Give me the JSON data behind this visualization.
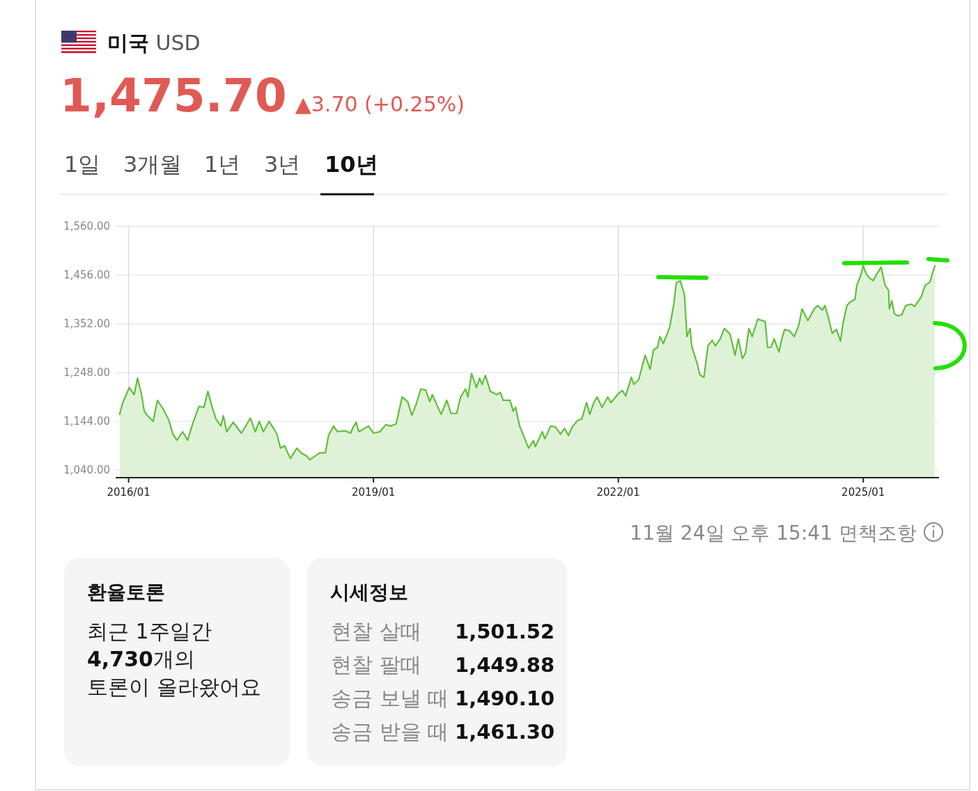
{
  "chart_data": [
    {
      "type": "area",
      "title": "**미국** USD",
      "subtitle": "**1,475.70**▲3.70 (+0.25%)",
      "annotations": [
        "1일",
        "3개월",
        "1년",
        "3년",
        "**10년**",
        "11월 24일 오후 15:41",
        "면책조항"
      ],
      "color": "#5fbf3a",
      "grid": true,
      "xlim": [
        "2015-11-04",
        "2025-12-06"
      ],
      "ylim": [
        1024,
        1560
      ],
      "xticks": [
        {
          "value": "2016-01-01",
          "label": "2016/01"
        },
        {
          "value": "2019-01-01",
          "label": "2019/01"
        },
        {
          "value": "2022-01-01",
          "label": "2022/01"
        },
        {
          "value": "2025-01-01",
          "label": "2025/01"
        }
      ],
      "yticks": [
        {
          "value": 1040,
          "label": "1,040.00"
        },
        {
          "value": 1144,
          "label": "1,144.00"
        },
        {
          "value": 1248,
          "label": "1,248.00"
        },
        {
          "value": 1352,
          "label": "1,352.00"
        },
        {
          "value": 1456,
          "label": "1,456.00"
        },
        {
          "value": 1560,
          "label": "1,560.00"
        }
      ],
      "x": [
        "2015-11-22",
        "2015-12-06",
        "2016-01-04",
        "2016-01-26",
        "2016-02-10",
        "2016-02-28",
        "2016-03-11",
        "2016-03-26",
        "2016-04-20",
        "2016-05-09",
        "2016-06-03",
        "2016-06-29",
        "2016-07-17",
        "2016-08-04",
        "2016-08-30",
        "2016-09-21",
        "2016-10-16",
        "2016-11-11",
        "2016-12-03",
        "2016-12-21",
        "2017-01-08",
        "2017-01-26",
        "2017-02-17",
        "2017-02-28",
        "2017-03-15",
        "2017-04-13",
        "2017-05-20",
        "2017-06-29",
        "2017-07-21",
        "2017-08-08",
        "2017-08-26",
        "2017-09-21",
        "2017-10-24",
        "2017-11-11",
        "2017-11-29",
        "2017-12-25",
        "2018-01-23",
        "2018-02-10",
        "2018-03-08",
        "2018-03-22",
        "2018-05-05",
        "2018-05-31",
        "2018-06-14",
        "2018-07-06",
        "2018-07-24",
        "2018-08-26",
        "2018-09-21",
        "2018-10-02",
        "2018-10-16",
        "2018-10-27",
        "2018-12-10",
        "2019-01-01",
        "2019-01-30",
        "2019-02-25",
        "2019-03-19",
        "2019-04-13",
        "2019-05-09",
        "2019-06-03",
        "2019-06-22",
        "2019-07-10",
        "2019-08-01",
        "2019-08-23",
        "2019-09-10",
        "2019-09-21",
        "2019-10-31",
        "2019-11-25",
        "2019-12-14",
        "2020-01-08",
        "2020-01-26",
        "2020-02-17",
        "2020-02-28",
        "2020-03-15",
        "2020-04-06",
        "2020-04-20",
        "2020-05-01",
        "2020-05-16",
        "2020-06-07",
        "2020-07-06",
        "2020-07-21",
        "2020-08-04",
        "2020-09-03",
        "2020-09-17",
        "2020-09-28",
        "2020-10-16",
        "2020-10-31",
        "2020-11-25",
        "2020-12-17",
        "2020-12-25",
        "2021-01-26",
        "2021-02-06",
        "2021-03-04",
        "2021-03-26",
        "2021-04-17",
        "2021-05-05",
        "2021-05-23",
        "2021-06-07",
        "2021-07-02",
        "2021-07-21",
        "2021-08-12",
        "2021-08-26",
        "2021-09-13",
        "2021-09-28",
        "2021-10-20",
        "2021-11-15",
        "2021-11-29",
        "2022-01-01",
        "2022-01-19",
        "2022-02-03",
        "2022-02-28",
        "2022-03-11",
        "2022-04-02",
        "2022-05-01",
        "2022-05-23",
        "2022-06-07",
        "2022-06-25",
        "2022-07-06",
        "2022-07-21",
        "2022-08-19",
        "2022-09-06",
        "2022-09-17",
        "2022-10-05",
        "2022-10-24",
        "2022-11-04",
        "2022-11-18",
        "2022-11-25",
        "2022-12-21",
        "2023-01-01",
        "2023-01-19",
        "2023-02-06",
        "2023-02-25",
        "2023-03-11",
        "2023-04-02",
        "2023-04-20",
        "2023-05-16",
        "2023-06-07",
        "2023-06-22",
        "2023-07-10",
        "2023-07-24",
        "2023-08-08",
        "2023-08-23",
        "2023-09-17",
        "2023-10-20",
        "2023-10-31",
        "2023-11-15",
        "2023-11-29",
        "2023-12-21",
        "2024-01-01",
        "2024-01-15",
        "2024-02-06",
        "2024-02-28",
        "2024-03-19",
        "2024-04-02",
        "2024-04-28",
        "2024-05-27",
        "2024-06-11",
        "2024-07-02",
        "2024-07-13",
        "2024-07-28",
        "2024-08-15",
        "2024-09-03",
        "2024-09-21",
        "2024-10-02",
        "2024-10-20",
        "2024-11-04",
        "2024-11-25",
        "2024-12-03",
        "2024-12-21",
        "2025-01-01",
        "2025-01-15",
        "2025-01-26",
        "2025-02-14",
        "2025-02-28",
        "2025-03-22",
        "2025-04-09",
        "2025-04-24",
        "2025-04-28",
        "2025-05-09",
        "2025-05-20",
        "2025-06-03",
        "2025-06-22",
        "2025-07-10",
        "2025-08-04",
        "2025-08-19",
        "2025-09-17",
        "2025-10-05",
        "2025-10-27",
        "2025-11-07",
        "2025-11-18"
      ],
      "values": [
        1159,
        1184,
        1216,
        1201,
        1236,
        1201,
        1166,
        1156,
        1144,
        1189,
        1171,
        1147,
        1117,
        1104,
        1122,
        1104,
        1142,
        1176,
        1174,
        1208,
        1176,
        1149,
        1134,
        1156,
        1122,
        1142,
        1119,
        1151,
        1122,
        1144,
        1122,
        1144,
        1119,
        1087,
        1092,
        1065,
        1087,
        1077,
        1070,
        1062,
        1077,
        1077,
        1114,
        1134,
        1122,
        1124,
        1119,
        1132,
        1142,
        1122,
        1134,
        1119,
        1122,
        1137,
        1134,
        1139,
        1196,
        1186,
        1157,
        1179,
        1213,
        1211,
        1186,
        1201,
        1159,
        1189,
        1161,
        1161,
        1196,
        1213,
        1196,
        1246,
        1216,
        1236,
        1223,
        1242,
        1208,
        1201,
        1206,
        1189,
        1189,
        1166,
        1174,
        1134,
        1117,
        1087,
        1103,
        1090,
        1122,
        1107,
        1134,
        1132,
        1117,
        1129,
        1114,
        1131,
        1146,
        1149,
        1184,
        1159,
        1184,
        1196,
        1174,
        1196,
        1184,
        1203,
        1210,
        1198,
        1238,
        1223,
        1233,
        1285,
        1255,
        1296,
        1302,
        1325,
        1310,
        1345,
        1394,
        1439,
        1444,
        1414,
        1325,
        1342,
        1305,
        1265,
        1243,
        1238,
        1305,
        1317,
        1305,
        1320,
        1342,
        1330,
        1285,
        1320,
        1278,
        1290,
        1342,
        1325,
        1362,
        1357,
        1302,
        1302,
        1320,
        1292,
        1317,
        1340,
        1337,
        1325,
        1350,
        1384,
        1359,
        1384,
        1391,
        1381,
        1391,
        1367,
        1332,
        1340,
        1315,
        1352,
        1391,
        1399,
        1404,
        1434,
        1456,
        1476,
        1458,
        1451,
        1444,
        1456,
        1473,
        1434,
        1424,
        1384,
        1401,
        1374,
        1369,
        1371,
        1391,
        1394,
        1389,
        1409,
        1434,
        1441,
        1461,
        1476
      ]
    },
    {
      "type": "other",
      "title": "환율토론",
      "annotations": [
        "최근 1주일간",
        "**4,730**개의",
        "토론이 올라왔어요"
      ]
    },
    {
      "type": "other",
      "title": "시세정보",
      "annotations": [
        "현찰 살때",
        "1,501.52",
        "현찰 팔때",
        "1,449.88",
        "송금 보낼 때",
        "1,490.10",
        "송금 받을 때",
        "1,461.30"
      ]
    }
  ]
}
